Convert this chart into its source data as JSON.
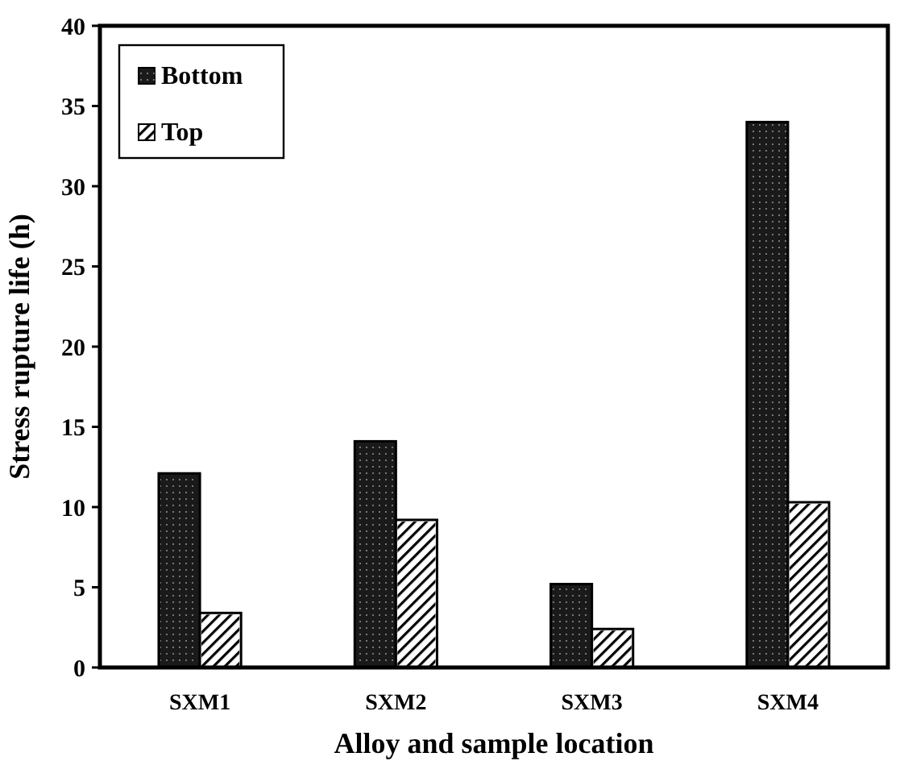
{
  "chart_data": {
    "type": "bar",
    "xlabel": "Alloy and sample location",
    "ylabel": "Stress rupture life (h)",
    "categories": [
      "SXM1",
      "SXM2",
      "SXM3",
      "SXM4"
    ],
    "series": [
      {
        "name": "Bottom",
        "color": "#1a1a1a",
        "values": [
          12.1,
          14.1,
          5.2,
          34.0
        ]
      },
      {
        "name": "Top",
        "color": "#ffffff",
        "values": [
          3.4,
          9.2,
          2.4,
          10.3
        ]
      }
    ],
    "ylim": [
      0,
      40
    ],
    "yticks": [
      0,
      5,
      10,
      15,
      20,
      25,
      30,
      35,
      40
    ],
    "grid": false,
    "legend": "top left"
  }
}
